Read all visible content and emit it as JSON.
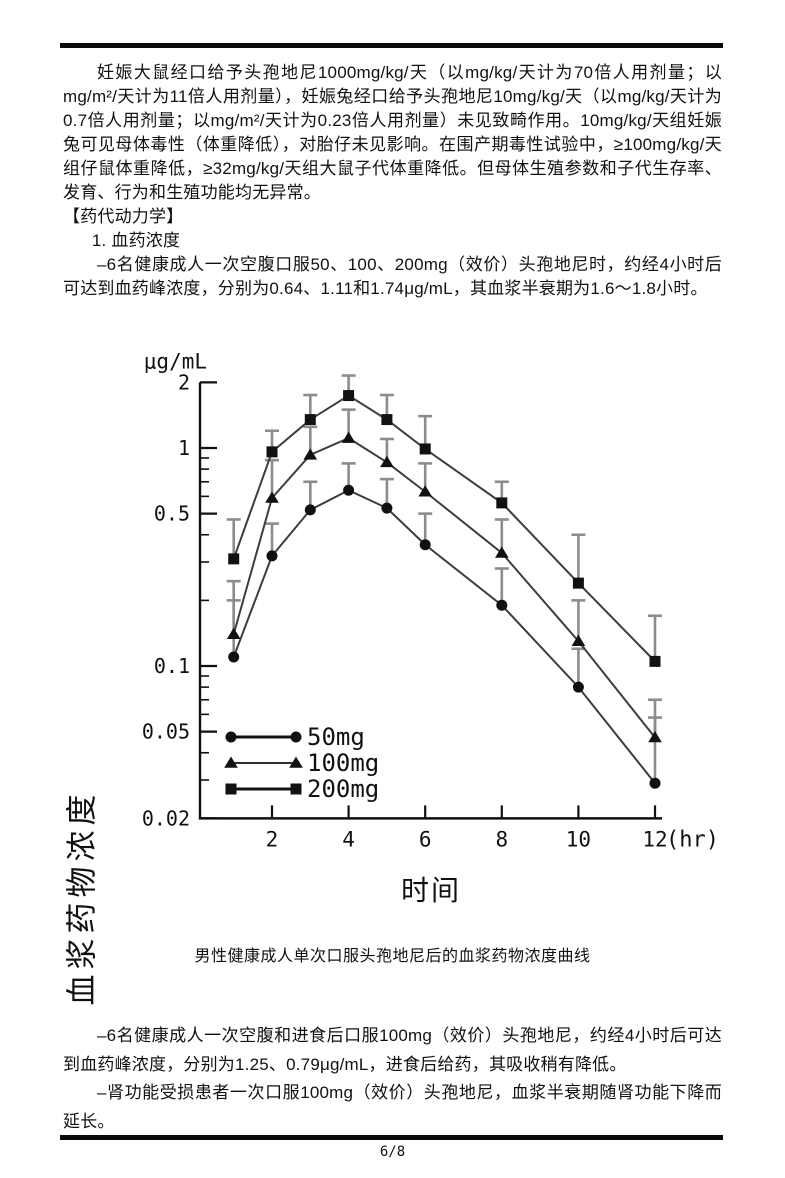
{
  "page": {
    "number": "6/8"
  },
  "body": {
    "para_reproductive": "妊娠大鼠经口给予头孢地尼1000mg/kg/天（以mg/kg/天计为70倍人用剂量；以mg/m²/天计为11倍人用剂量），妊娠兔经口给予头孢地尼10mg/kg/天（以mg/kg/天计为0.7倍人用剂量；以mg/m²/天计为0.23倍人用剂量）未见致畸作用。10mg/kg/天组妊娠兔可见母体毒性（体重降低），对胎仔未见影响。在围产期毒性试验中，≥100mg/kg/天组仔鼠体重降低，≥32mg/kg/天组大鼠子代体重降低。但母体生殖参数和子代生存率、发育、行为和生殖功能均无异常。",
    "section_header": "【药代动力学】",
    "subsection": "1. 血药浓度",
    "para_single_dose": "–6名健康成人一次空腹口服50、100、200mg（效价）头孢地尼时，约经4小时后可达到血药峰浓度，分别为0.64、1.11和1.74μg/mL，其血浆半衰期为1.6～1.8小时。",
    "para_food_effect": "–6名健康成人一次空腹和进食后口服100mg（效价）头孢地尼，约经4小时后可达到血药峰浓度，分别为1.25、0.79μg/mL，进食后给药，其吸收稍有降低。",
    "para_renal": "–肾功能受损患者一次口服100mg（效价）头孢地尼，血浆半衰期随肾功能下降而延长。"
  },
  "figure": {
    "caption": "男性健康成人单次口服头孢地尼后的血浆药物浓度曲线"
  },
  "chart_data": {
    "type": "line",
    "y_scale": "log",
    "title": "",
    "ylabel": "血浆药物浓度",
    "y_unit_label": "μg/mL",
    "xlabel": "时间",
    "x_unit_label": "(hr)",
    "x": [
      1,
      2,
      3,
      4,
      5,
      6,
      8,
      10,
      12
    ],
    "x_ticks": [
      2,
      4,
      6,
      8,
      10,
      12
    ],
    "x_tick_labels": [
      "2",
      "4",
      "6",
      "8",
      "10",
      "12"
    ],
    "y_ticks_major": [
      2,
      1,
      0.5,
      0.1,
      0.05,
      0.02
    ],
    "y_tick_labels": [
      "2",
      "1",
      "0.5",
      "0.1",
      "0.05",
      "0.02"
    ],
    "y_ticks_minor": [
      0.9,
      0.8,
      0.7,
      0.6,
      0.4,
      0.3,
      0.2,
      0.09,
      0.08,
      0.07,
      0.06,
      0.04,
      0.03
    ],
    "ylim": [
      0.02,
      2
    ],
    "xlim": [
      0.5,
      12.5
    ],
    "grid": false,
    "legend_position": "inside-lower-left",
    "series": [
      {
        "name": "50mg",
        "marker": "circle",
        "values": [
          0.11,
          0.32,
          0.52,
          0.64,
          0.53,
          0.36,
          0.19,
          0.08,
          0.029
        ],
        "upper_error": [
          0.2,
          0.45,
          0.7,
          0.85,
          0.72,
          0.5,
          0.28,
          0.12,
          0.058
        ]
      },
      {
        "name": "100mg",
        "marker": "triangle",
        "values": [
          0.14,
          0.59,
          0.93,
          1.11,
          0.86,
          0.63,
          0.33,
          0.13,
          0.047
        ],
        "upper_error": [
          0.245,
          0.88,
          1.25,
          1.5,
          1.1,
          0.85,
          0.47,
          0.2,
          0.07
        ]
      },
      {
        "name": "200mg",
        "marker": "square",
        "values": [
          0.31,
          0.96,
          1.35,
          1.74,
          1.35,
          0.99,
          0.56,
          0.24,
          0.105
        ],
        "upper_error": [
          0.47,
          1.2,
          1.75,
          2.15,
          1.75,
          1.4,
          0.7,
          0.4,
          0.17
        ]
      }
    ],
    "colors": {
      "line": "#3d3d3d",
      "marker": "#111111",
      "error_bar": "#8c8c8c",
      "axis": "#111111"
    }
  }
}
